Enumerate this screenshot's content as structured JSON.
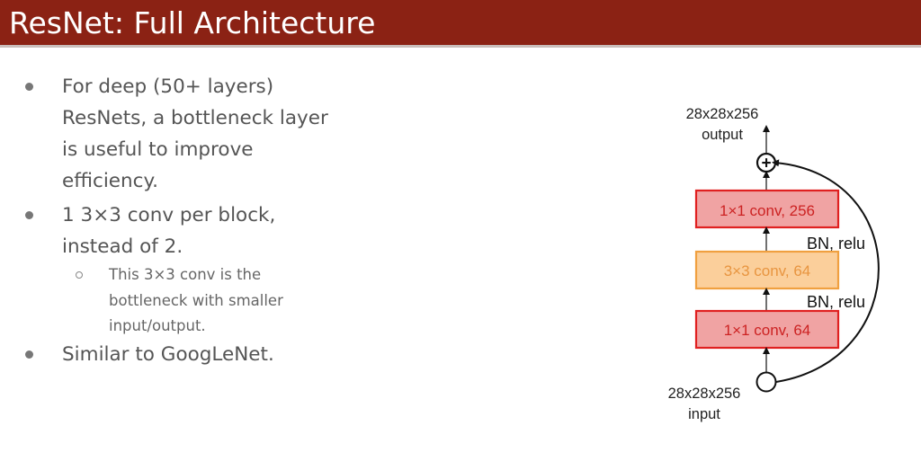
{
  "slide": {
    "title": "ResNet: Full Architecture",
    "bullets": [
      {
        "text": "For deep (50+ layers) ResNets, a bottleneck layer is useful to improve efficiency."
      },
      {
        "text": "1 3×3 conv per block, instead of 2."
      },
      {
        "text": "Similar to GoogLeNet."
      }
    ],
    "sub_bullets": [
      {
        "text": "This 3×3 conv is the bottleneck with smaller input/output."
      }
    ]
  },
  "diagram": {
    "output_size": "28x28x256",
    "output_label": "output",
    "input_size": "28x28x256",
    "input_label": "input",
    "blocks": [
      {
        "label": "1×1 conv, 256",
        "fill": "#f0a3a3",
        "stroke": "#e02020",
        "text_color": "#cc2222"
      },
      {
        "label": "3×3 conv, 64",
        "fill": "#fbcf9b",
        "stroke": "#f0a040",
        "text_color": "#e89540"
      },
      {
        "label": "1×1 conv, 64",
        "fill": "#f0a3a3",
        "stroke": "#e02020",
        "text_color": "#cc2222"
      }
    ],
    "activations": [
      "BN, relu",
      "BN, relu"
    ],
    "add_symbol": "+"
  }
}
